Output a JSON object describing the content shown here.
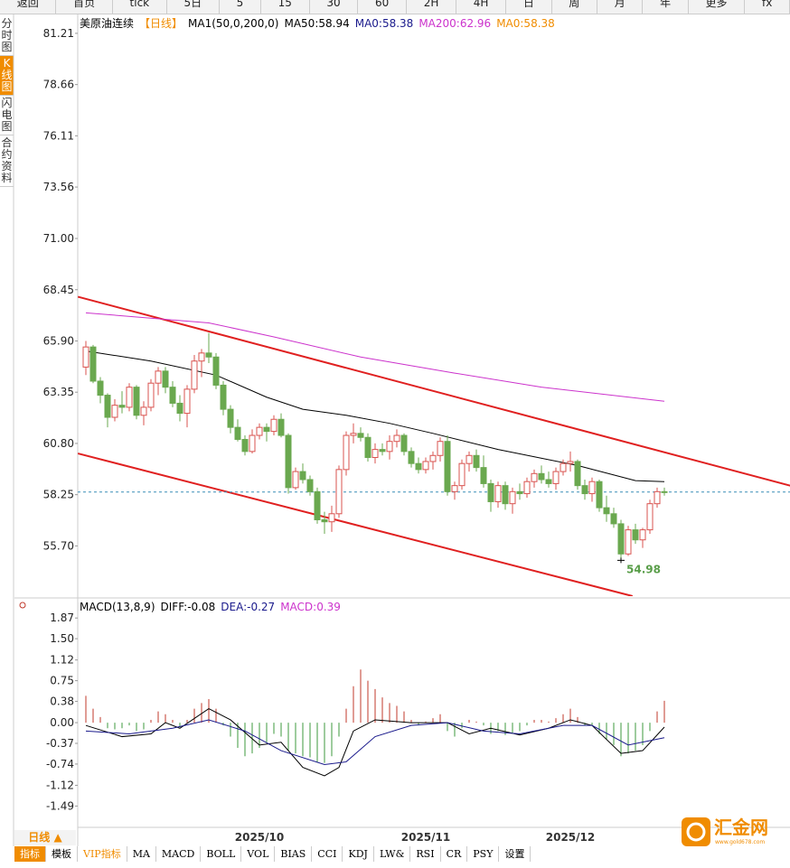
{
  "toolbar": [
    "返回",
    "首页",
    "tick",
    "5日",
    "5",
    "15",
    "30",
    "60",
    "2H",
    "4H",
    "日",
    "周",
    "月",
    "年",
    "更多",
    "fx"
  ],
  "side_tabs": [
    "分时图",
    "K线图",
    "闪电图",
    "合约资料"
  ],
  "period_button": "日线 ▲",
  "bottom_tabs": [
    "指标",
    "模板",
    "VIP指标",
    "MA",
    "MACD",
    "BOLL",
    "VOL",
    "BIAS",
    "CCI",
    "KDJ",
    "LW&",
    "RSI",
    "CR",
    "PSY",
    "设置"
  ],
  "logo": {
    "name": "汇金网",
    "url": "www.gold678.com"
  },
  "chart_data": [
    {
      "type": "candlestick",
      "title": "美原油连续",
      "period": "【日线】",
      "legend": [
        {
          "text": "MA1(50,0,200,0)",
          "color": "#000000"
        },
        {
          "text": "MA50:58.94",
          "color": "#000000"
        },
        {
          "text": "MA0:58.38",
          "color": "#1a1a8c"
        },
        {
          "text": "MA200:62.96",
          "color": "#cc33cc"
        },
        {
          "text": "MA0:58.38",
          "color": "#f08c00"
        }
      ],
      "categories": [
        null,
        null,
        null,
        null,
        null,
        null,
        null,
        null,
        null,
        null,
        null,
        null,
        null,
        null,
        null,
        null,
        null,
        null,
        null,
        null,
        null,
        null,
        null,
        null,
        "2025/10",
        null,
        null,
        null,
        null,
        null,
        null,
        null,
        null,
        null,
        null,
        null,
        null,
        null,
        null,
        null,
        null,
        null,
        null,
        null,
        null,
        null,
        null,
        "2025/11",
        null,
        null,
        null,
        null,
        null,
        null,
        null,
        null,
        null,
        null,
        null,
        null,
        null,
        null,
        null,
        null,
        null,
        null,
        null,
        "2025/12",
        null,
        null,
        null,
        null,
        null,
        null,
        null,
        null,
        null,
        null,
        null,
        null,
        null
      ],
      "ohlc": [
        [
          64.6,
          65.9,
          64.2,
          65.6
        ],
        [
          65.6,
          65.7,
          63.8,
          63.9
        ],
        [
          63.9,
          64.1,
          62.8,
          63.2
        ],
        [
          63.2,
          63.3,
          61.6,
          62.1
        ],
        [
          62.1,
          63.0,
          61.9,
          62.7
        ],
        [
          62.7,
          63.4,
          62.3,
          62.6
        ],
        [
          62.6,
          63.8,
          62.4,
          63.6
        ],
        [
          63.6,
          63.7,
          62.0,
          62.2
        ],
        [
          62.2,
          62.9,
          61.7,
          62.6
        ],
        [
          62.6,
          64.0,
          62.4,
          63.8
        ],
        [
          63.8,
          64.6,
          63.2,
          64.4
        ],
        [
          64.4,
          64.6,
          63.3,
          63.6
        ],
        [
          63.6,
          63.9,
          62.6,
          62.8
        ],
        [
          62.8,
          63.2,
          61.9,
          62.3
        ],
        [
          62.3,
          63.7,
          61.6,
          63.5
        ],
        [
          63.5,
          65.2,
          63.3,
          64.9
        ],
        [
          64.9,
          65.5,
          64.1,
          65.3
        ],
        [
          65.3,
          66.3,
          64.8,
          65.1
        ],
        [
          65.1,
          65.3,
          63.5,
          63.7
        ],
        [
          63.7,
          63.9,
          62.2,
          62.5
        ],
        [
          62.5,
          62.7,
          61.3,
          61.6
        ],
        [
          61.6,
          62.0,
          60.9,
          61.0
        ],
        [
          61.0,
          61.2,
          60.2,
          60.4
        ],
        [
          60.4,
          61.5,
          60.3,
          61.2
        ],
        [
          61.2,
          61.8,
          61.0,
          61.6
        ],
        [
          61.6,
          61.8,
          60.9,
          61.4
        ],
        [
          61.4,
          62.2,
          61.2,
          62.0
        ],
        [
          62.0,
          62.3,
          61.1,
          61.2
        ],
        [
          61.2,
          61.3,
          58.3,
          58.6
        ],
        [
          58.6,
          59.6,
          58.5,
          59.4
        ],
        [
          59.4,
          59.8,
          58.8,
          59.0
        ],
        [
          59.0,
          59.2,
          58.2,
          58.4
        ],
        [
          58.4,
          58.6,
          56.8,
          57.0
        ],
        [
          57.0,
          57.4,
          56.3,
          56.9
        ],
        [
          56.9,
          57.7,
          56.4,
          57.3
        ],
        [
          57.3,
          59.7,
          57.1,
          59.5
        ],
        [
          59.5,
          61.4,
          59.2,
          61.2
        ],
        [
          61.2,
          61.8,
          60.8,
          61.3
        ],
        [
          61.3,
          61.6,
          60.9,
          61.1
        ],
        [
          61.1,
          61.3,
          59.9,
          60.1
        ],
        [
          60.1,
          60.8,
          59.8,
          60.5
        ],
        [
          60.5,
          60.8,
          60.2,
          60.4
        ],
        [
          60.4,
          61.2,
          60.0,
          60.9
        ],
        [
          60.9,
          61.5,
          60.6,
          61.2
        ],
        [
          61.2,
          61.3,
          60.2,
          60.4
        ],
        [
          60.4,
          60.6,
          59.6,
          59.8
        ],
        [
          59.8,
          60.1,
          59.3,
          59.5
        ],
        [
          59.5,
          60.1,
          59.3,
          59.9
        ],
        [
          59.9,
          60.4,
          59.5,
          60.2
        ],
        [
          60.2,
          61.1,
          59.9,
          60.9
        ],
        [
          60.9,
          61.2,
          58.2,
          58.4
        ],
        [
          58.4,
          58.9,
          58.0,
          58.7
        ],
        [
          58.7,
          60.0,
          58.5,
          59.8
        ],
        [
          59.8,
          60.4,
          59.4,
          60.2
        ],
        [
          60.2,
          60.5,
          59.4,
          59.6
        ],
        [
          59.6,
          60.2,
          58.6,
          58.8
        ],
        [
          58.8,
          59.0,
          57.4,
          57.9
        ],
        [
          57.9,
          58.9,
          57.6,
          58.7
        ],
        [
          58.7,
          58.9,
          57.5,
          57.8
        ],
        [
          57.8,
          58.6,
          57.3,
          58.4
        ],
        [
          58.4,
          58.8,
          58.0,
          58.3
        ],
        [
          58.3,
          59.1,
          58.1,
          58.9
        ],
        [
          58.9,
          59.5,
          58.6,
          59.3
        ],
        [
          59.3,
          59.7,
          58.8,
          59.0
        ],
        [
          59.0,
          59.4,
          58.6,
          58.8
        ],
        [
          58.8,
          59.6,
          58.5,
          59.4
        ],
        [
          59.4,
          60.0,
          59.2,
          59.8
        ],
        [
          59.8,
          60.4,
          59.4,
          59.9
        ],
        [
          59.9,
          60.0,
          58.5,
          58.7
        ],
        [
          58.7,
          59.0,
          58.0,
          58.3
        ],
        [
          58.3,
          59.1,
          57.9,
          58.9
        ],
        [
          58.9,
          59.0,
          57.4,
          57.6
        ],
        [
          57.6,
          58.2,
          56.9,
          57.3
        ],
        [
          57.3,
          57.6,
          56.6,
          56.8
        ],
        [
          56.8,
          57.0,
          54.98,
          55.3
        ],
        [
          55.3,
          56.7,
          55.2,
          56.5
        ],
        [
          56.5,
          56.8,
          55.8,
          56.0
        ],
        [
          56.0,
          56.6,
          55.6,
          56.5
        ],
        [
          56.5,
          58.0,
          56.3,
          57.8
        ],
        [
          57.8,
          58.6,
          57.6,
          58.4
        ],
        [
          58.4,
          58.6,
          58.2,
          58.38
        ]
      ],
      "up_color": "#d9534f",
      "down_color": "#6aa84f",
      "ma_lines": [
        {
          "name": "MA50",
          "color": "#000000",
          "points": [
            [
              0,
              65.4
            ],
            [
              9,
              64.9
            ],
            [
              18,
              64.2
            ],
            [
              25,
              63.1
            ],
            [
              30,
              62.5
            ],
            [
              36,
              62.2
            ],
            [
              42,
              61.8
            ],
            [
              48,
              61.3
            ],
            [
              57,
              60.5
            ],
            [
              68,
              59.7
            ],
            [
              76,
              58.95
            ],
            [
              80,
              58.9
            ]
          ]
        },
        {
          "name": "MA200",
          "color": "#cc33cc",
          "points": [
            [
              0,
              67.3
            ],
            [
              17,
              66.8
            ],
            [
              26,
              66.1
            ],
            [
              38,
              65.1
            ],
            [
              51,
              64.3
            ],
            [
              63,
              63.6
            ],
            [
              80,
              62.9
            ]
          ]
        }
      ],
      "trendlines": [
        {
          "color": "#e02020",
          "from": [
            -1.1,
            68.1
          ],
          "to": [
            97.4,
            58.7
          ]
        },
        {
          "color": "#e02020",
          "from": [
            -1.1,
            60.3
          ],
          "to": [
            75.6,
            53.2
          ]
        }
      ],
      "price_line": {
        "value": 58.38,
        "color": "#3a8fb7"
      },
      "annotations": [
        {
          "x": 74,
          "value": 54.98,
          "color": "#5a9e4a"
        }
      ],
      "ylim": [
        53.2,
        81.97
      ],
      "yticks": [
        81.21,
        78.66,
        76.11,
        73.56,
        {
          "value": 71,
          "label": "71.00"
        },
        68.45,
        {
          "value": 65.9,
          "label": "65.90"
        },
        63.35,
        {
          "value": 60.8,
          "label": "60.80"
        },
        58.25,
        {
          "value": 55.7,
          "label": "55.70"
        }
      ]
    },
    {
      "type": "macd",
      "title": "MACD(13,8,9)",
      "legend": [
        {
          "text": "DIFF:-0.08",
          "color": "#000000"
        },
        {
          "text": "DEA:-0.27",
          "color": "#1a1a8c"
        },
        {
          "text": "MACD:0.39",
          "color": "#cc33cc"
        }
      ],
      "histogram": [
        0.48,
        0.25,
        0.1,
        -0.1,
        -0.12,
        -0.1,
        -0.05,
        -0.15,
        -0.12,
        0.05,
        0.2,
        0.15,
        0.05,
        -0.08,
        0.05,
        0.25,
        0.35,
        0.42,
        0.25,
        -0.05,
        -0.25,
        -0.45,
        -0.6,
        -0.55,
        -0.45,
        -0.35,
        -0.2,
        -0.25,
        -0.5,
        -0.55,
        -0.6,
        -0.62,
        -0.7,
        -0.72,
        -0.6,
        -0.25,
        0.25,
        0.65,
        0.95,
        0.75,
        0.6,
        0.45,
        0.35,
        0.3,
        0.2,
        0.05,
        -0.05,
        0.02,
        0.08,
        0.15,
        -0.15,
        -0.25,
        -0.1,
        0.05,
        0.02,
        -0.05,
        -0.2,
        -0.15,
        -0.22,
        -0.18,
        -0.15,
        -0.05,
        0.05,
        0.05,
        0.02,
        0.08,
        0.15,
        0.25,
        0.1,
        -0.05,
        -0.05,
        -0.2,
        -0.3,
        -0.4,
        -0.6,
        -0.55,
        -0.5,
        -0.4,
        -0.15,
        0.2,
        0.39
      ],
      "up_color": "#c0392b",
      "down_color": "#3c9a3c",
      "lines": [
        {
          "name": "DIFF",
          "color": "#000000",
          "points": [
            [
              0,
              -0.05
            ],
            [
              5,
              -0.25
            ],
            [
              9,
              -0.2
            ],
            [
              11,
              0.0
            ],
            [
              13,
              -0.1
            ],
            [
              17,
              0.25
            ],
            [
              20,
              0.05
            ],
            [
              24,
              -0.4
            ],
            [
              27,
              -0.35
            ],
            [
              30,
              -0.8
            ],
            [
              33,
              -0.95
            ],
            [
              35,
              -0.8
            ],
            [
              37,
              -0.15
            ],
            [
              40,
              0.05
            ],
            [
              45,
              0.0
            ],
            [
              50,
              0.0
            ],
            [
              53,
              -0.2
            ],
            [
              56,
              -0.1
            ],
            [
              60,
              -0.22
            ],
            [
              64,
              -0.1
            ],
            [
              67,
              0.05
            ],
            [
              70,
              -0.05
            ],
            [
              74,
              -0.55
            ],
            [
              77,
              -0.5
            ],
            [
              80,
              -0.08
            ]
          ]
        },
        {
          "name": "DEA",
          "color": "#1a1a8c",
          "points": [
            [
              0,
              -0.15
            ],
            [
              6,
              -0.2
            ],
            [
              12,
              -0.1
            ],
            [
              17,
              0.05
            ],
            [
              22,
              -0.15
            ],
            [
              27,
              -0.5
            ],
            [
              33,
              -0.75
            ],
            [
              36,
              -0.7
            ],
            [
              40,
              -0.25
            ],
            [
              45,
              -0.05
            ],
            [
              50,
              0.0
            ],
            [
              55,
              -0.15
            ],
            [
              60,
              -0.2
            ],
            [
              66,
              -0.05
            ],
            [
              70,
              -0.05
            ],
            [
              75,
              -0.4
            ],
            [
              80,
              -0.27
            ]
          ]
        }
      ],
      "ylim": [
        -1.855,
        2.18
      ],
      "yticks": [
        1.87,
        {
          "value": 1.5,
          "label": "1.50"
        },
        1.12,
        0.75,
        0.38,
        {
          "value": 0,
          "label": "0.00"
        },
        -0.37,
        -0.74,
        -1.12,
        -1.49
      ]
    }
  ]
}
